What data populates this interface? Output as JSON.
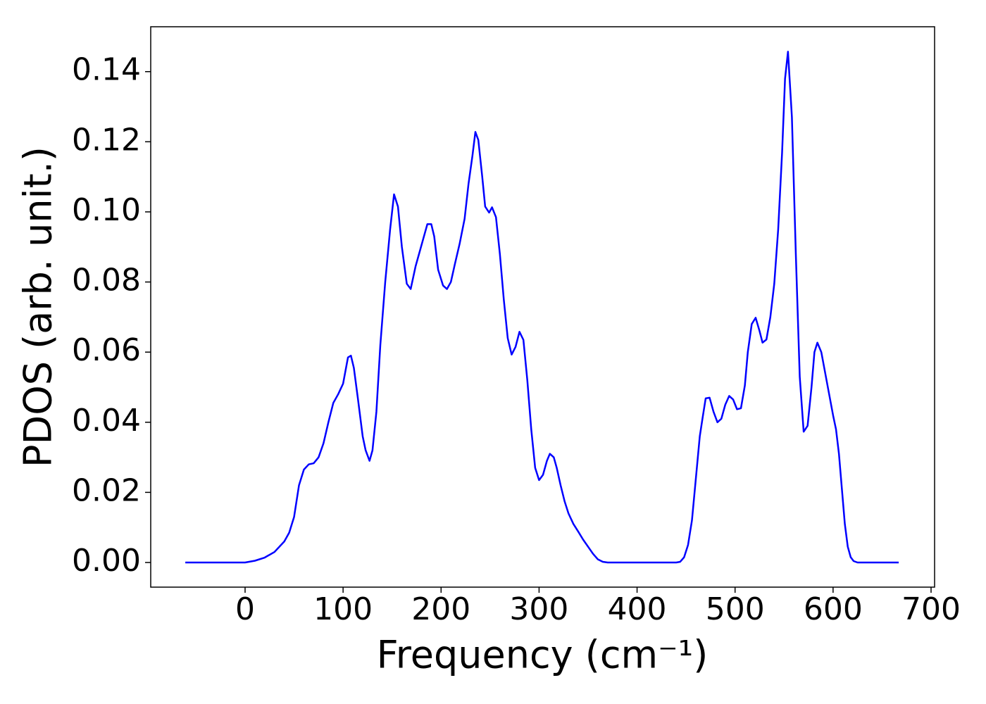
{
  "chart_data": {
    "type": "line",
    "xlabel": "Frequency (cm⁻¹)",
    "ylabel": "PDOS (arb. unit.)",
    "x": [
      -61,
      -10,
      0,
      10,
      20,
      30,
      40,
      45,
      50,
      55,
      60,
      65,
      70,
      75,
      80,
      85,
      90,
      95,
      100,
      105,
      108,
      111,
      115,
      120,
      123,
      127,
      130,
      134,
      138,
      143,
      148,
      152,
      156,
      160,
      165,
      169,
      174,
      178,
      182,
      186,
      190,
      193,
      197,
      202,
      206,
      210,
      214,
      219,
      224,
      228,
      232,
      235,
      238,
      242,
      245,
      249,
      252,
      256,
      260,
      264,
      268,
      272,
      276,
      280,
      284,
      288,
      292,
      296,
      300,
      304,
      308,
      311,
      315,
      318,
      322,
      326,
      330,
      335,
      340,
      345,
      350,
      355,
      360,
      365,
      370,
      440,
      444,
      448,
      452,
      456,
      460,
      464,
      467,
      470,
      474,
      478,
      482,
      486,
      490,
      494,
      498,
      502,
      506,
      510,
      513,
      517,
      521,
      525,
      528,
      532,
      536,
      540,
      544,
      548,
      551,
      554,
      558,
      562,
      566,
      570,
      574,
      578,
      581,
      584,
      588,
      592,
      596,
      600,
      603,
      606,
      609,
      612,
      615,
      618,
      621,
      625,
      667
    ],
    "series": [
      {
        "color": "#0000ff",
        "values": [
          0,
          0,
          0,
          0.0005,
          0.0014,
          0.003,
          0.006,
          0.0085,
          0.013,
          0.022,
          0.0265,
          0.028,
          0.0283,
          0.03,
          0.034,
          0.04,
          0.0455,
          0.048,
          0.051,
          0.0585,
          0.059,
          0.0555,
          0.047,
          0.036,
          0.032,
          0.029,
          0.032,
          0.043,
          0.062,
          0.08,
          0.095,
          0.105,
          0.1015,
          0.09,
          0.0795,
          0.078,
          0.0845,
          0.0885,
          0.0925,
          0.0965,
          0.0965,
          0.093,
          0.0835,
          0.079,
          0.078,
          0.08,
          0.085,
          0.091,
          0.098,
          0.108,
          0.116,
          0.1228,
          0.1205,
          0.11,
          0.1015,
          0.0998,
          0.1013,
          0.0985,
          0.088,
          0.075,
          0.064,
          0.0593,
          0.0615,
          0.0658,
          0.0635,
          0.052,
          0.038,
          0.027,
          0.0235,
          0.025,
          0.029,
          0.031,
          0.03,
          0.027,
          0.022,
          0.0175,
          0.014,
          0.011,
          0.0088,
          0.0065,
          0.0045,
          0.0025,
          0.0009,
          0.0002,
          0,
          0,
          0.0002,
          0.0015,
          0.005,
          0.012,
          0.024,
          0.036,
          0.0415,
          0.0468,
          0.047,
          0.043,
          0.04,
          0.041,
          0.045,
          0.0475,
          0.0465,
          0.0437,
          0.044,
          0.0505,
          0.06,
          0.068,
          0.0698,
          0.066,
          0.0627,
          0.0636,
          0.07,
          0.0795,
          0.095,
          0.117,
          0.138,
          0.1457,
          0.127,
          0.088,
          0.053,
          0.0373,
          0.039,
          0.05,
          0.06,
          0.0627,
          0.06,
          0.054,
          0.048,
          0.042,
          0.038,
          0.031,
          0.021,
          0.011,
          0.0045,
          0.0015,
          0.0004,
          0,
          0
        ]
      }
    ],
    "xlim": [
      -96.3,
      703.6
    ],
    "ylim": [
      -0.00703,
      0.1528
    ],
    "xticks": [
      0,
      100,
      200,
      300,
      400,
      500,
      600,
      700
    ],
    "yticks": [
      {
        "value": 0,
        "label": "0.00"
      },
      {
        "value": 0.02,
        "label": "0.02"
      },
      {
        "value": 0.04,
        "label": "0.04"
      },
      {
        "value": 0.06,
        "label": "0.06"
      },
      {
        "value": 0.08,
        "label": "0.08"
      },
      {
        "value": 0.1,
        "label": "0.10"
      },
      {
        "value": 0.12,
        "label": "0.12"
      },
      0.14
    ],
    "grid": false
  }
}
